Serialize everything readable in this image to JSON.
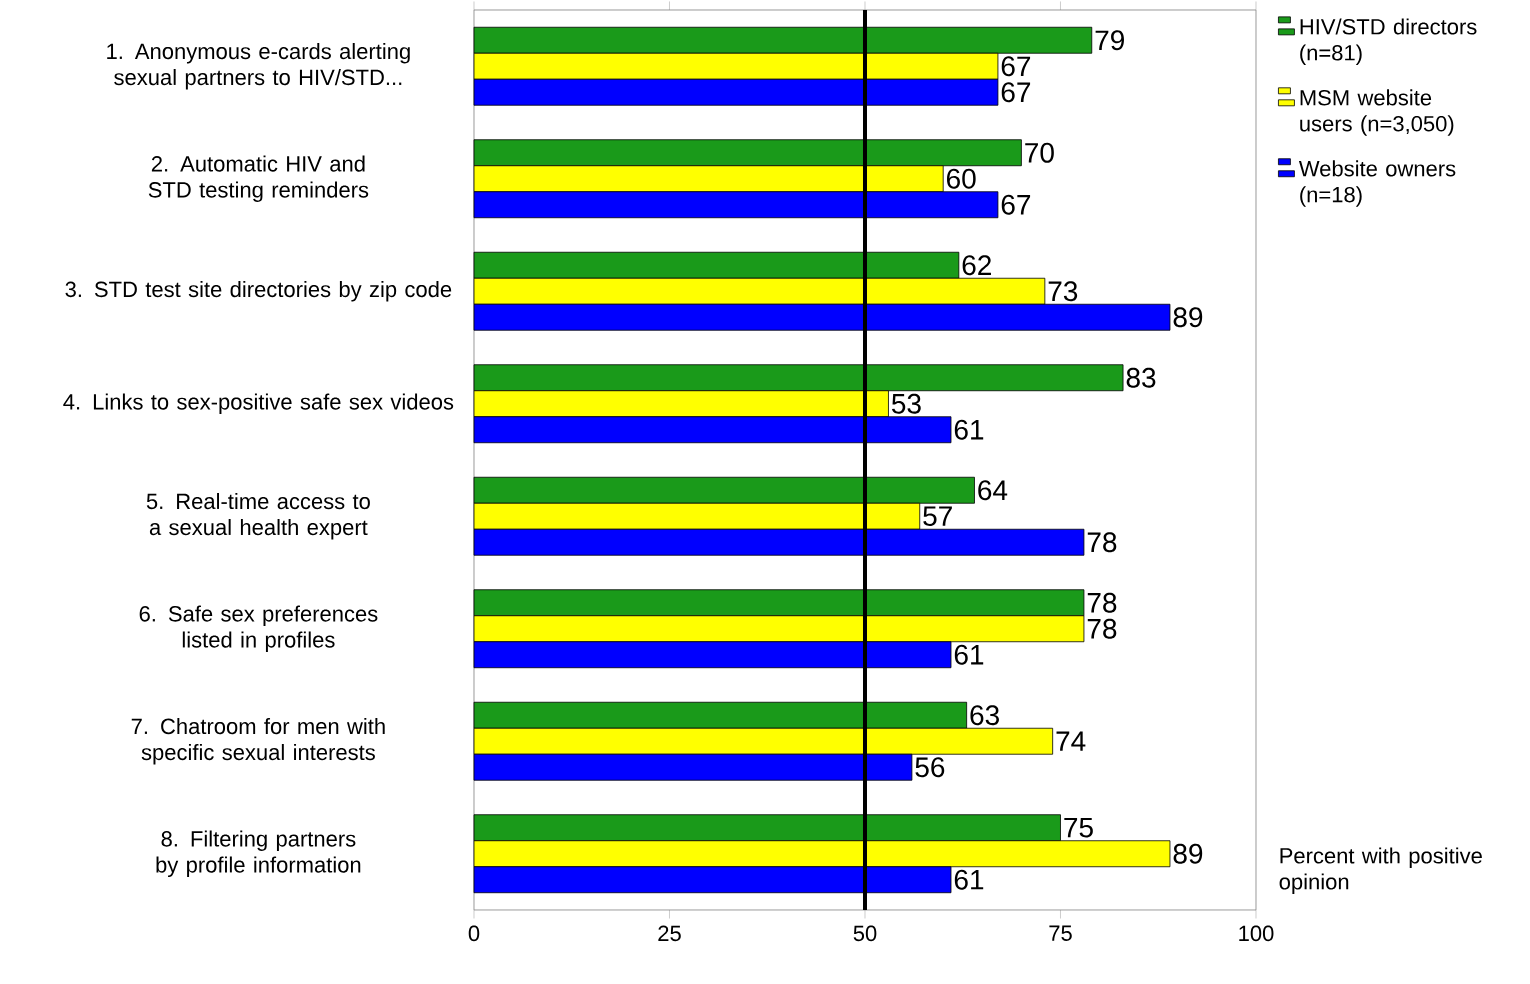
{
  "chart_data": {
    "type": "bar",
    "orientation": "horizontal",
    "categories": [
      "1. Anonymous e-cards alerting sexual partners to HIV/STD...",
      "2. Automatic HIV and STD testing reminders",
      "3. STD test site directories by zip code",
      "4. Links to sex-positive safe sex videos",
      "5. Real-time access to a sexual health expert",
      "6. Safe sex preferences listed in profiles",
      "7. Chatroom for men with specific sexual interests",
      "8. Filtering partners by profile information"
    ],
    "series": [
      {
        "name": "HIV/STD directors (n=81)",
        "color": "#1a9a1a",
        "values": [
          79,
          70,
          62,
          83,
          64,
          78,
          63,
          75
        ]
      },
      {
        "name": "MSM website users (n=3,050)",
        "color": "#ffff00",
        "values": [
          67,
          60,
          73,
          53,
          57,
          78,
          74,
          89
        ]
      },
      {
        "name": "Website owners (n=18)",
        "color": "#0000ff",
        "values": [
          67,
          67,
          89,
          61,
          78,
          61,
          56,
          61
        ]
      }
    ],
    "xlim": [
      0,
      100
    ],
    "xticks": [
      0,
      25,
      50,
      75,
      100
    ],
    "ref_lines": [
      {
        "axis": "x",
        "value": 50,
        "color": "#000000"
      }
    ],
    "data_labels": true,
    "legend": "right",
    "annotations": [
      "Percent with positive opinion"
    ]
  }
}
